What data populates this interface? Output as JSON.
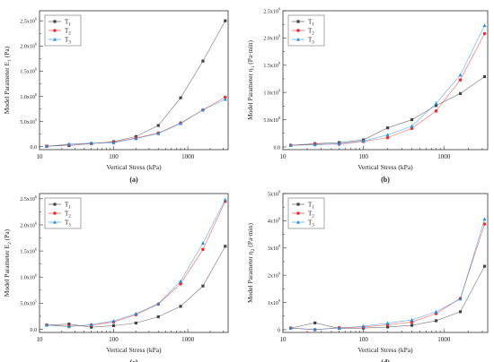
{
  "legend_labels": [
    "T1",
    "T2",
    "T3"
  ],
  "series_colors": [
    "#444444",
    "#e8302c",
    "#2a8ee0"
  ],
  "series_markers": [
    "square",
    "circle",
    "triangle"
  ],
  "chart_data": [
    {
      "type": "line",
      "panel_label": "(a)",
      "xlabel": "Vertical Stress (kPa)",
      "ylabel": "Model Parameter E1 (Pa)",
      "x_scale": "log",
      "xlim": [
        10,
        3500
      ],
      "x_ticks": [
        10,
        100,
        1000
      ],
      "x_tick_labels": [
        "10",
        "100",
        "1000"
      ],
      "ylim": [
        -60000,
        2700000
      ],
      "y_ticks": [
        0,
        500000,
        1000000,
        1500000,
        2000000,
        2500000
      ],
      "y_tick_labels": [
        "0.0",
        "5.0x10^5",
        "1.0x10^6",
        "1.5x10^6",
        "2.0x10^6",
        "2.5x10^6"
      ],
      "legend_position": "top-left",
      "grid": false,
      "x": [
        12.5,
        25,
        50,
        100,
        200,
        400,
        800,
        1600,
        3200
      ],
      "series": [
        {
          "name": "T1",
          "values": [
            10000,
            20000,
            60000,
            100000,
            200000,
            420000,
            970000,
            1700000,
            2500000
          ]
        },
        {
          "name": "T2",
          "values": [
            5000,
            40000,
            60000,
            90000,
            170000,
            270000,
            470000,
            730000,
            980000
          ]
        },
        {
          "name": "T3",
          "values": [
            5000,
            50000,
            70000,
            80000,
            160000,
            260000,
            460000,
            730000,
            940000
          ]
        }
      ]
    },
    {
      "type": "line",
      "panel_label": "(b)",
      "xlabel": "Vertical Stress (kPa)",
      "ylabel": "Model Parameter η1 (Pa·min)",
      "x_scale": "log",
      "xlim": [
        10,
        3500
      ],
      "x_ticks": [
        10,
        100,
        1000
      ],
      "x_tick_labels": [
        "10",
        "100",
        "1000"
      ],
      "ylim": [
        -50000000,
        2500000000
      ],
      "y_ticks": [
        0,
        500000000,
        1000000000,
        1500000000,
        2000000000,
        2500000000
      ],
      "y_tick_labels": [
        "0.0",
        "5.0x10^8",
        "1.0x10^9",
        "1.5x10^9",
        "2.0x10^9",
        "2.5x10^9"
      ],
      "legend_position": "top-left",
      "grid": false,
      "x": [
        12.5,
        25,
        50,
        100,
        200,
        400,
        800,
        1600,
        3200
      ],
      "series": [
        {
          "name": "T1",
          "values": [
            30000000,
            60000000,
            80000000,
            130000000,
            350000000,
            500000000,
            760000000,
            980000000,
            1290000000
          ]
        },
        {
          "name": "T2",
          "values": [
            30000000,
            50000000,
            50000000,
            100000000,
            170000000,
            340000000,
            660000000,
            1230000000,
            2080000000
          ]
        },
        {
          "name": "T3",
          "values": [
            30000000,
            40000000,
            60000000,
            110000000,
            220000000,
            380000000,
            800000000,
            1320000000,
            2230000000
          ]
        }
      ]
    },
    {
      "type": "line",
      "panel_label": "(c)",
      "xlabel": "Vertical Stress (kPa)",
      "ylabel": "Model Parameter E2 (Pa)",
      "x_scale": "log",
      "xlim": [
        10,
        3500
      ],
      "x_ticks": [
        10,
        100,
        1000
      ],
      "x_tick_labels": [
        "10",
        "100",
        "1000"
      ],
      "ylim": [
        -60000,
        2600000
      ],
      "y_ticks": [
        0,
        500000,
        1000000,
        1500000,
        2000000,
        2500000
      ],
      "y_tick_labels": [
        "0.0",
        "5.0x10^5",
        "1.0x10^6",
        "1.5x10^6",
        "2.0x10^6",
        "2.5x10^6"
      ],
      "legend_position": "top-left",
      "grid": false,
      "x": [
        12.5,
        25,
        50,
        100,
        200,
        400,
        800,
        1600,
        3200
      ],
      "series": [
        {
          "name": "T1",
          "values": [
            80000,
            100000,
            40000,
            70000,
            120000,
            240000,
            440000,
            830000,
            1590000
          ]
        },
        {
          "name": "T2",
          "values": [
            80000,
            60000,
            80000,
            140000,
            280000,
            480000,
            870000,
            1530000,
            2450000
          ]
        },
        {
          "name": "T3",
          "values": [
            80000,
            50000,
            90000,
            160000,
            300000,
            490000,
            920000,
            1650000,
            2480000
          ]
        }
      ]
    },
    {
      "type": "line",
      "panel_label": "(d)",
      "xlabel": "Vertical Stress (kPa)",
      "ylabel": "Model Parameter η2 (Pa·min)",
      "x_scale": "log",
      "xlim": [
        10,
        3500
      ],
      "x_ticks": [
        10,
        100,
        1000
      ],
      "x_tick_labels": [
        "10",
        "100",
        "1000"
      ],
      "ylim": [
        -100000000,
        5000000000
      ],
      "y_ticks": [
        0,
        1000000000,
        2000000000,
        3000000000,
        4000000000,
        5000000000
      ],
      "y_tick_labels": [
        "0",
        "1x10^9",
        "2x10^9",
        "3x10^9",
        "4x10^9",
        "5x10^9"
      ],
      "legend_position": "top-left",
      "grid": false,
      "x": [
        12.5,
        25,
        50,
        100,
        200,
        400,
        800,
        1600,
        3200
      ],
      "series": [
        {
          "name": "T1",
          "values": [
            60000000,
            250000000,
            50000000,
            60000000,
            100000000,
            160000000,
            330000000,
            660000000,
            2330000000
          ]
        },
        {
          "name": "T2",
          "values": [
            60000000,
            0,
            70000000,
            100000000,
            180000000,
            280000000,
            590000000,
            1150000000,
            3880000000
          ]
        },
        {
          "name": "T3",
          "values": [
            60000000,
            10000000,
            60000000,
            130000000,
            240000000,
            360000000,
            660000000,
            1130000000,
            4060000000
          ]
        }
      ]
    }
  ]
}
